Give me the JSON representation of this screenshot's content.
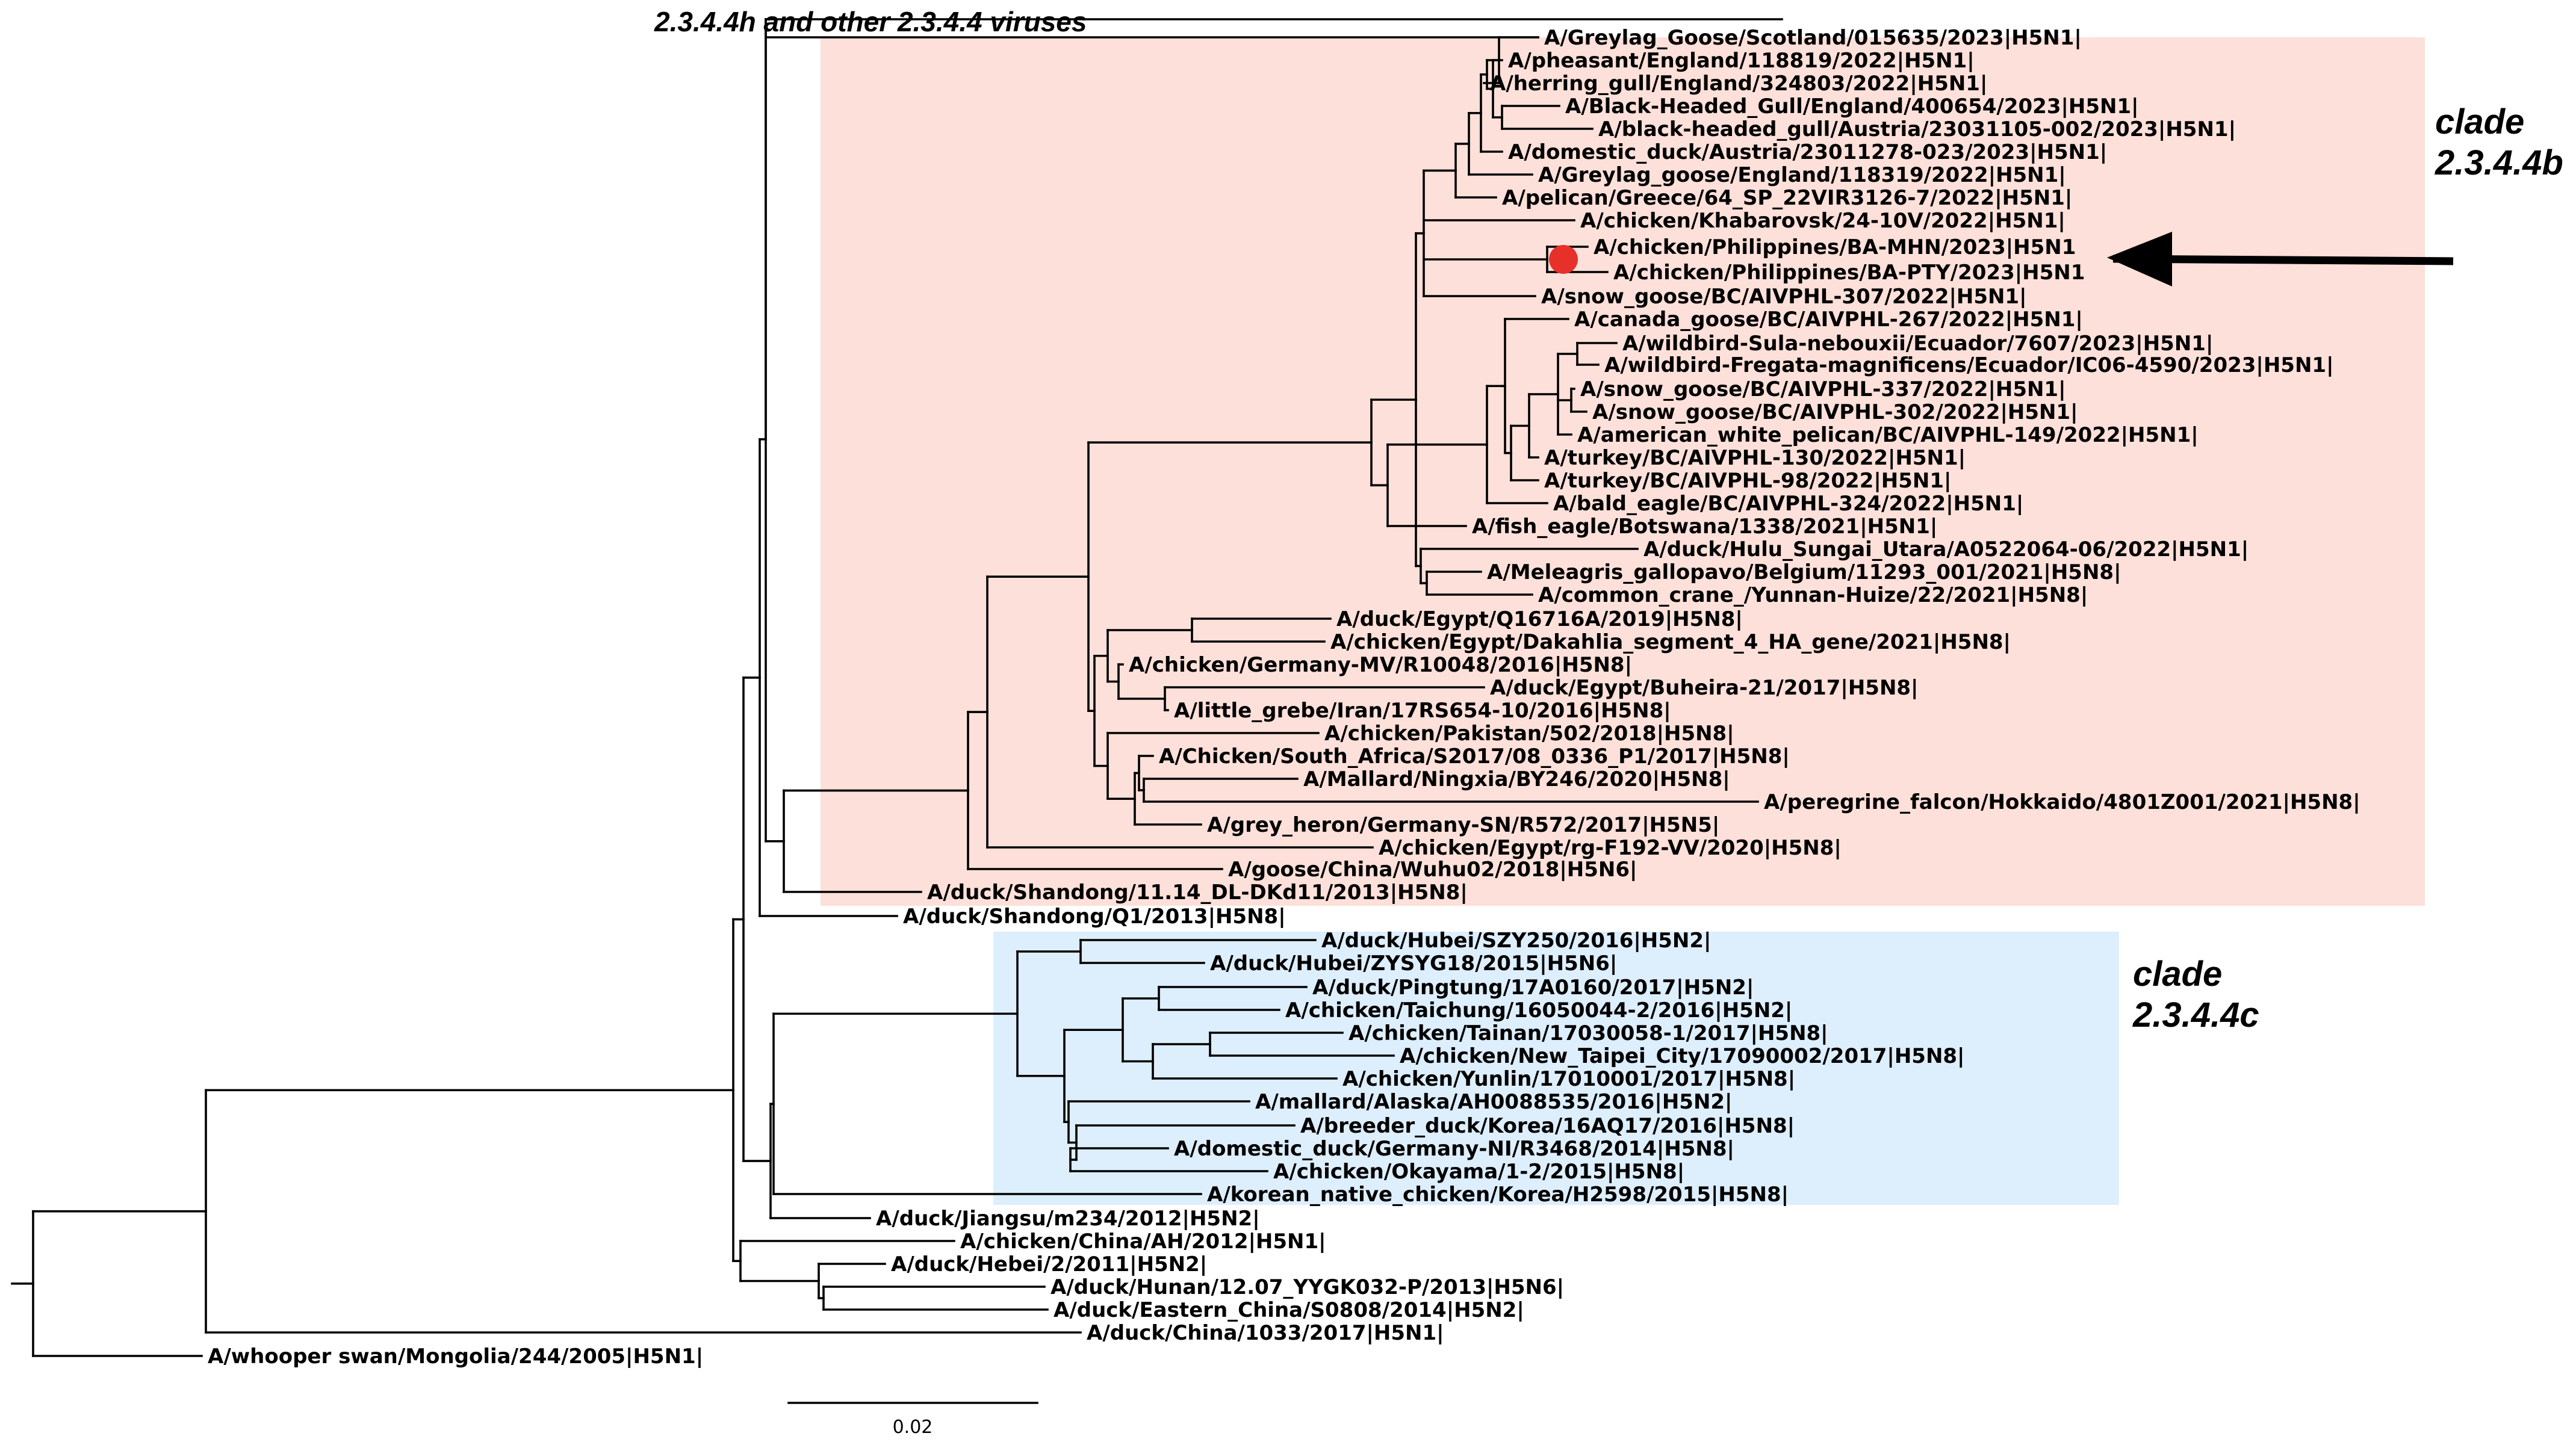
{
  "colors": {
    "clade_b_fill": "#fde0d9",
    "clade_c_fill": "#ddeefd",
    "branch": "#000000",
    "marker": "#e8302a"
  },
  "top_branch_label": "2.3.4.4h and other 2.3.4.4 viruses",
  "clades": {
    "b": {
      "line1": "clade",
      "line2": "2.3.4.4b"
    },
    "c": {
      "line1": "clade",
      "line2": "2.3.4.4c"
    }
  },
  "scale_bar": {
    "label": "0.02",
    "length": 0.02
  },
  "highlight": {
    "leaves": [
      "A/chicken/Philippines/BA-MHN/2023|H5N1",
      "A/chicken/Philippines/BA-PTY/2023|H5N1"
    ],
    "arrow_icon": "arrow-left-icon",
    "marker_icon": "red-dot-icon"
  },
  "taxa": [
    "A/Greylag_Goose/Scotland/015635/2023|H5N1|",
    "A/pheasant/England/118819/2022|H5N1|",
    "A/herring_gull/England/324803/2022|H5N1|",
    "A/Black-Headed_Gull/England/400654/2023|H5N1|",
    "A/black-headed_gull/Austria/23031105-002/2023|H5N1|",
    "A/domestic_duck/Austria/23011278-023/2023|H5N1|",
    "A/Greylag_goose/England/118319/2022|H5N1|",
    "A/pelican/Greece/64_SP_22VIR3126-7/2022|H5N1|",
    "A/chicken/Khabarovsk/24-10V/2022|H5N1|",
    "A/chicken/Philippines/BA-MHN/2023|H5N1",
    "A/chicken/Philippines/BA-PTY/2023|H5N1",
    "A/snow_goose/BC/AIVPHL-307/2022|H5N1|",
    "A/canada_goose/BC/AIVPHL-267/2022|H5N1|",
    "A/wildbird-Sula-nebouxii/Ecuador/7607/2023|H5N1|",
    "A/wildbird-Fregata-magnificens/Ecuador/IC06-4590/2023|H5N1|",
    "A/snow_goose/BC/AIVPHL-337/2022|H5N1|",
    "A/snow_goose/BC/AIVPHL-302/2022|H5N1|",
    "A/american_white_pelican/BC/AIVPHL-149/2022|H5N1|",
    "A/turkey/BC/AIVPHL-130/2022|H5N1|",
    "A/turkey/BC/AIVPHL-98/2022|H5N1|",
    "A/bald_eagle/BC/AIVPHL-324/2022|H5N1|",
    "A/fish_eagle/Botswana/1338/2021|H5N1|",
    "A/duck/Hulu_Sungai_Utara/A0522064-06/2022|H5N1|",
    "A/Meleagris_gallopavo/Belgium/11293_001/2021|H5N8|",
    "A/common_crane_/Yunnan-Huize/22/2021|H5N8|",
    "A/duck/Egypt/Q16716A/2019|H5N8|",
    "A/chicken/Egypt/Dakahlia_segment_4_HA_gene/2021|H5N8|",
    "A/chicken/Germany-MV/R10048/2016|H5N8|",
    "A/duck/Egypt/Buheira-21/2017|H5N8|",
    "A/little_grebe/Iran/17RS654-10/2016|H5N8|",
    "A/chicken/Pakistan/502/2018|H5N8|",
    "A/Chicken/South_Africa/S2017/08_0336_P1/2017|H5N8|",
    "A/Mallard/Ningxia/BY246/2020|H5N8|",
    "A/peregrine_falcon/Hokkaido/4801Z001/2021|H5N8|",
    "A/grey_heron/Germany-SN/R572/2017|H5N5|",
    "A/chicken/Egypt/rg-F192-VV/2020|H5N8|",
    "A/goose/China/Wuhu02/2018|H5N6|",
    "A/duck/Shandong/11.14_DL-DKd11/2013|H5N8|",
    "A/duck/Shandong/Q1/2013|H5N8|",
    "A/duck/Hubei/SZY250/2016|H5N2|",
    "A/duck/Hubei/ZYSYG18/2015|H5N6|",
    "A/duck/Pingtung/17A0160/2017|H5N2|",
    "A/chicken/Taichung/16050044-2/2016|H5N2|",
    "A/chicken/Tainan/17030058-1/2017|H5N8|",
    "A/chicken/New_Taipei_City/17090002/2017|H5N8|",
    "A/chicken/Yunlin/17010001/2017|H5N8|",
    "A/mallard/Alaska/AH0088535/2016|H5N2|",
    "A/breeder_duck/Korea/16AQ17/2016|H5N8|",
    "A/domestic_duck/Germany-NI/R3468/2014|H5N8|",
    "A/chicken/Okayama/1-2/2015|H5N8|",
    "A/korean_native_chicken/Korea/H2598/2015|H5N8|",
    "A/duck/Jiangsu/m234/2012|H5N2|",
    "A/chicken/China/AH/2012|H5N1|",
    "A/duck/Hebei/2/2011|H5N2|",
    "A/duck/Hunan/12.07_YYGK032-P/2013|H5N6|",
    "A/duck/Eastern_China/S0808/2014|H5N2|",
    "A/duck/China/1033/2017|H5N1|",
    "A/whooper swan/Mongolia/244/2005|H5N1|"
  ]
}
